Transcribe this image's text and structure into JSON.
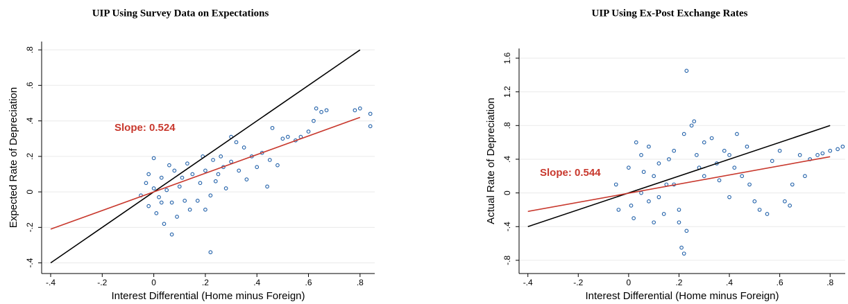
{
  "chart_data": [
    {
      "type": "scatter",
      "title": "UIP Using Survey Data on Expectations",
      "x_label": "Interest Differential (Home minus Foreign)",
      "y_label": "Expected Rate of Depreciation",
      "annotation": {
        "text": "Slope: 0.524",
        "color": "#c8382d"
      },
      "xlim": [
        -0.435,
        0.857
      ],
      "ylim": [
        -0.46,
        0.847
      ],
      "xticks": [
        {
          "value": -0.4,
          "label": "-.4"
        },
        {
          "value": -0.2,
          "label": "-.2"
        },
        0,
        {
          "value": 0.2,
          "label": ".2"
        },
        {
          "value": 0.4,
          "label": ".4"
        },
        {
          "value": 0.6,
          "label": ".6"
        },
        {
          "value": 0.8,
          "label": ".8"
        }
      ],
      "yticks": [
        {
          "value": -0.4,
          "label": "-.4"
        },
        {
          "value": -0.2,
          "label": "-.2"
        },
        0,
        {
          "value": 0.2,
          "label": ".2"
        },
        {
          "value": 0.4,
          "label": ".4"
        },
        {
          "value": 0.6,
          "label": ".6"
        },
        {
          "value": 0.8,
          "label": ".8"
        }
      ],
      "grid": true,
      "series": [
        {
          "type": "scatter",
          "color": "#1f5fa8",
          "x": [
            -0.03,
            0,
            0.02,
            0.05,
            0.03,
            0.07,
            0.1,
            0.08,
            -0.05,
            0.01,
            0.04,
            0.12,
            0.15,
            0.06,
            0,
            -0.02,
            0.09,
            0.13,
            0.18,
            0.2,
            0.22,
            0.25,
            0.27,
            0.24,
            0.3,
            0.32,
            0.3,
            0.35,
            0.33,
            0.38,
            0.42,
            0.45,
            0.48,
            0.5,
            0.52,
            0.55,
            0.57,
            0.6,
            0.62,
            0.63,
            0.65,
            0.67,
            0.78,
            0.8,
            0.84,
            0.84,
            0.22,
            0.07,
            0.2,
            0.17,
            0.44,
            0.4,
            0.28,
            0.36,
            0.11,
            0.14,
            0.19,
            0.23,
            0.26,
            0.46,
            -0.02,
            0.03
          ],
          "values": [
            0.05,
            0.02,
            -0.03,
            0.01,
            0.08,
            -0.06,
            0.03,
            0.12,
            -0.02,
            -0.12,
            -0.18,
            -0.05,
            0.1,
            0.15,
            0.19,
            -0.08,
            -0.14,
            0.16,
            0.05,
            0.12,
            -0.02,
            0.1,
            0.14,
            0.06,
            0.17,
            0.28,
            0.31,
            0.25,
            0.12,
            0.2,
            0.22,
            0.18,
            0.15,
            0.3,
            0.31,
            0.29,
            0.31,
            0.34,
            0.4,
            0.47,
            0.45,
            0.46,
            0.46,
            0.47,
            0.44,
            0.37,
            -0.34,
            -0.24,
            -0.1,
            -0.05,
            0.03,
            0.14,
            0.02,
            0.07,
            0.08,
            -0.1,
            0.2,
            0.18,
            0.2,
            0.36,
            0.1,
            -0.06
          ]
        },
        {
          "type": "line",
          "color": "#000000",
          "x": [
            -0.4,
            0.8
          ],
          "values": [
            -0.4,
            0.8
          ]
        },
        {
          "type": "line",
          "color": "#c8382d",
          "x": [
            -0.4,
            0.8
          ],
          "values": [
            -0.21,
            0.42
          ]
        }
      ]
    },
    {
      "type": "scatter",
      "title": "UIP Using Ex-Post Exchange Rates",
      "x_label": "Interest Differential (Home minus Foreign)",
      "y_label": "Actual Rate of Depreciation",
      "annotation": {
        "text": "Slope: 0.544",
        "color": "#c8382d"
      },
      "xlim": [
        -0.435,
        0.86
      ],
      "ylim": [
        -0.957,
        1.715
      ],
      "xticks": [
        {
          "value": -0.4,
          "label": "-.4"
        },
        {
          "value": -0.2,
          "label": "-.2"
        },
        0,
        {
          "value": 0.2,
          "label": ".2"
        },
        {
          "value": 0.4,
          "label": ".4"
        },
        {
          "value": 0.6,
          "label": ".6"
        },
        {
          "value": 0.8,
          "label": ".8"
        }
      ],
      "yticks": [
        {
          "value": -0.8,
          "label": "-.8"
        },
        {
          "value": -0.4,
          "label": "-.4"
        },
        0,
        {
          "value": 0.4,
          "label": ".4"
        },
        {
          "value": 0.8,
          "label": ".8"
        },
        {
          "value": 1.2,
          "label": "1.2"
        },
        {
          "value": 1.6,
          "label": "1.6"
        }
      ],
      "grid": true,
      "series": [
        {
          "type": "scatter",
          "color": "#1f5fa8",
          "x": [
            -0.05,
            -0.04,
            0,
            0.02,
            0.05,
            0.05,
            0.08,
            0.1,
            0.1,
            0.12,
            0.15,
            0.14,
            0.03,
            0.08,
            0.18,
            0.2,
            0.22,
            0.23,
            0.25,
            0.26,
            0.21,
            0.22,
            0.23,
            0.2,
            0.27,
            0.3,
            0.3,
            0.33,
            0.35,
            0.38,
            0.4,
            0.42,
            0.43,
            0.45,
            0.47,
            0.5,
            0.52,
            0.55,
            0.57,
            0.6,
            0.62,
            0.64,
            0.65,
            0.7,
            0.72,
            0.75,
            0.77,
            0.8,
            0.83,
            0.85,
            0.36,
            0.28,
            0.16,
            0.01,
            0.06,
            0.12,
            0.18,
            0.4,
            0.48,
            0.68
          ],
          "values": [
            0.1,
            -0.2,
            0.3,
            -0.3,
            0.45,
            0,
            -0.1,
            0.2,
            -0.35,
            0.35,
            0.1,
            -0.25,
            0.6,
            0.55,
            0.1,
            -0.2,
            0.7,
            1.45,
            0.8,
            0.85,
            -0.65,
            -0.72,
            -0.45,
            -0.35,
            0.45,
            0.2,
            0.6,
            0.65,
            0.35,
            0.5,
            0.45,
            0.3,
            0.7,
            0.2,
            0.55,
            -0.1,
            -0.2,
            -0.25,
            0.38,
            0.5,
            -0.1,
            -0.15,
            0.1,
            0.2,
            0.4,
            0.45,
            0.47,
            0.5,
            0.52,
            0.55,
            0.15,
            0.3,
            0.4,
            -0.15,
            0.25,
            -0.05,
            0.5,
            -0.05,
            0.1,
            0.45
          ]
        },
        {
          "type": "line",
          "color": "#000000",
          "x": [
            -0.4,
            0.8
          ],
          "values": [
            -0.4,
            0.8
          ]
        },
        {
          "type": "line",
          "color": "#c8382d",
          "x": [
            -0.4,
            0.8
          ],
          "values": [
            -0.22,
            0.43
          ]
        }
      ]
    }
  ]
}
